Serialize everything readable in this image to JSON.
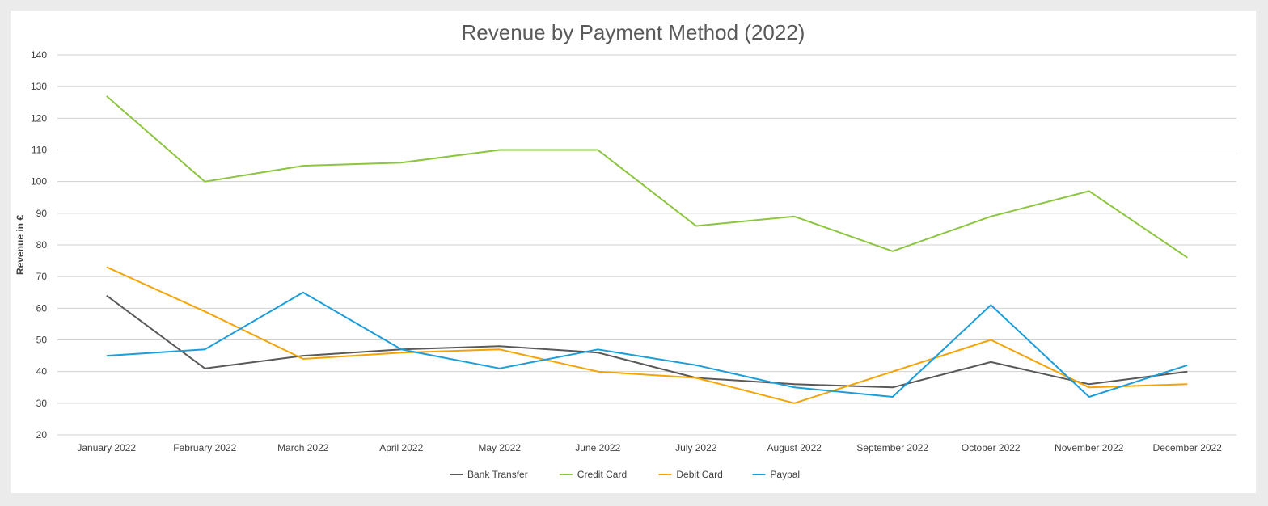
{
  "chart_data": {
    "type": "line",
    "title": "Revenue by Payment Method (2022)",
    "xlabel": "",
    "ylabel": "Revenue in €",
    "ylim": [
      20,
      140
    ],
    "ytick_step": 10,
    "grid": true,
    "legend_position": "bottom",
    "categories": [
      "January 2022",
      "February 2022",
      "March 2022",
      "April 2022",
      "May 2022",
      "June 2022",
      "July 2022",
      "August 2022",
      "September 2022",
      "October 2022",
      "November 2022",
      "December 2022"
    ],
    "series": [
      {
        "name": "Bank Transfer",
        "color": "#595959",
        "values": [
          64,
          41,
          45,
          47,
          48,
          46,
          38,
          36,
          35,
          43,
          36,
          40
        ]
      },
      {
        "name": "Credit Card",
        "color": "#8cc53f",
        "values": [
          127,
          100,
          105,
          106,
          110,
          110,
          86,
          89,
          78,
          89,
          97,
          76
        ]
      },
      {
        "name": "Debit Card",
        "color": "#f4a300",
        "values": [
          73,
          59,
          44,
          46,
          47,
          40,
          38,
          30,
          40,
          50,
          35,
          36
        ]
      },
      {
        "name": "Paypal",
        "color": "#1b9dd9",
        "values": [
          45,
          47,
          65,
          47,
          41,
          47,
          42,
          35,
          32,
          61,
          32,
          42
        ]
      }
    ]
  }
}
